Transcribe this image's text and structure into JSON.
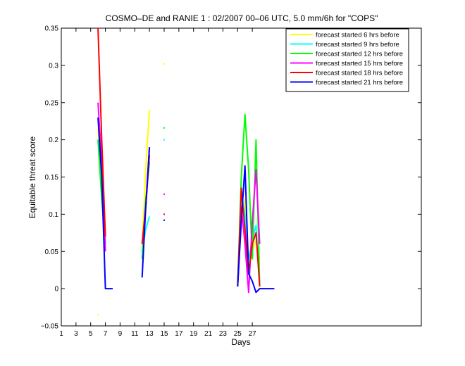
{
  "chart_data": {
    "type": "line",
    "title": "COSMO–DE and RANIE 1 : 02/2007 00–06 UTC, 5.0 mm/6h for \"COPS\"",
    "xlabel": "Days",
    "ylabel": "Equitable threat score",
    "xlim": [
      1,
      50
    ],
    "ylim": [
      -0.05,
      0.35
    ],
    "xticks": [
      1,
      3,
      5,
      7,
      9,
      11,
      13,
      15,
      17,
      19,
      21,
      23,
      25,
      27
    ],
    "xtick_labels": [
      "1",
      "3",
      "5",
      "7",
      "9",
      "11",
      "13",
      "15",
      "17",
      "19",
      "21",
      "23",
      "25",
      "27"
    ],
    "yticks": [
      -0.05,
      0,
      0.05,
      0.1,
      0.15,
      0.2,
      0.25,
      0.3,
      0.35
    ],
    "ytick_labels": [
      "−0.05",
      "0",
      "0.05",
      "0.1",
      "0.15",
      "0.2",
      "0.25",
      "0.3",
      "0.35"
    ],
    "legend_position": "top-right",
    "series": [
      {
        "name": "forecast started 6 hrs before",
        "color": "#ffff00",
        "segments": [
          [
            [
              6.0,
              0.215
            ],
            [
              6.5,
              0.13
            ],
            [
              7.0,
              0.05
            ]
          ],
          [
            [
              12.0,
              0.055
            ],
            [
              12.5,
              0.16
            ],
            [
              13.0,
              0.24
            ]
          ],
          [
            [
              25.0,
              0.003
            ],
            [
              25.5,
              0.1
            ],
            [
              26.0,
              0.12
            ],
            [
              26.5,
              0.04
            ],
            [
              27.0,
              0.05
            ],
            [
              27.5,
              0.065
            ],
            [
              28.0,
              0.04
            ]
          ]
        ],
        "points": [
          [
            6.0,
            -0.035
          ],
          [
            15.0,
            0.302
          ]
        ]
      },
      {
        "name": "forecast started 9 hrs before",
        "color": "#00ffff",
        "segments": [
          [
            [
              6.0,
              0.2
            ],
            [
              6.5,
              0.17
            ],
            [
              7.0,
              0.06
            ]
          ],
          [
            [
              12.0,
              0.05
            ],
            [
              12.5,
              0.08
            ],
            [
              13.0,
              0.097
            ]
          ],
          [
            [
              25.0,
              0.003
            ],
            [
              25.5,
              0.13
            ],
            [
              26.0,
              0.1
            ],
            [
              26.5,
              0.04
            ],
            [
              27.0,
              0.065
            ],
            [
              27.5,
              0.085
            ],
            [
              28.0,
              0.003
            ]
          ]
        ],
        "points": [
          [
            15.0,
            0.2
          ]
        ]
      },
      {
        "name": "forecast started 12 hrs before",
        "color": "#00ff00",
        "segments": [
          [
            [
              6.0,
              0.2
            ],
            [
              6.5,
              0.12
            ],
            [
              7.0,
              0.06
            ]
          ],
          [
            [
              12.0,
              0.04
            ],
            [
              12.5,
              0.12
            ],
            [
              13.0,
              0.17
            ]
          ],
          [
            [
              25.0,
              0.003
            ],
            [
              25.5,
              0.15
            ],
            [
              26.0,
              0.234
            ],
            [
              26.5,
              0.16
            ],
            [
              27.0,
              0.04
            ],
            [
              27.5,
              0.2
            ],
            [
              28.0,
              0.003
            ]
          ]
        ],
        "points": [
          [
            15.0,
            0.216
          ]
        ]
      },
      {
        "name": "forecast started 15 hrs before",
        "color": "#ff00ff",
        "segments": [
          [
            [
              6.0,
              0.25
            ],
            [
              6.5,
              0.17
            ],
            [
              7.0,
              0.05
            ]
          ],
          [
            [
              12.0,
              0.06
            ],
            [
              12.5,
              0.11
            ],
            [
              13.0,
              0.19
            ]
          ],
          [
            [
              25.0,
              0.003
            ],
            [
              25.5,
              0.11
            ],
            [
              26.0,
              0.06
            ],
            [
              26.5,
              -0.005
            ],
            [
              27.0,
              0.09
            ],
            [
              27.5,
              0.16
            ],
            [
              28.0,
              0.06
            ]
          ]
        ],
        "points": [
          [
            15.0,
            0.127
          ]
        ]
      },
      {
        "name": "forecast started 18 hrs before",
        "color": "#ff0000",
        "segments": [
          [
            [
              6.0,
              0.35
            ],
            [
              6.5,
              0.2
            ],
            [
              7.0,
              0.07
            ]
          ],
          [
            [
              12.0,
              0.06
            ],
            [
              12.5,
              0.11
            ],
            [
              13.0,
              0.18
            ]
          ],
          [
            [
              25.0,
              0.003
            ],
            [
              25.5,
              0.135
            ],
            [
              26.0,
              0.08
            ],
            [
              26.5,
              0.02
            ],
            [
              27.0,
              0.06
            ],
            [
              27.5,
              0.075
            ],
            [
              28.0,
              0.003
            ]
          ]
        ],
        "points": [
          [
            15.0,
            0.1
          ]
        ]
      },
      {
        "name": "forecast started 21 hrs before",
        "color": "#0000ff",
        "segments": [
          [
            [
              6.0,
              0.23
            ],
            [
              6.5,
              0.15
            ],
            [
              7.0,
              0.0
            ],
            [
              8.0,
              0.0
            ]
          ],
          [
            [
              12.0,
              0.015
            ],
            [
              12.5,
              0.11
            ],
            [
              13.0,
              0.19
            ]
          ],
          [
            [
              25.0,
              0.003
            ],
            [
              25.5,
              0.09
            ],
            [
              26.0,
              0.165
            ],
            [
              26.5,
              0.02
            ],
            [
              27.0,
              0.01
            ],
            [
              27.5,
              -0.005
            ],
            [
              28.0,
              0.0
            ],
            [
              30.0,
              0.0
            ]
          ]
        ],
        "points": [
          [
            15.0,
            0.092
          ]
        ]
      }
    ]
  }
}
